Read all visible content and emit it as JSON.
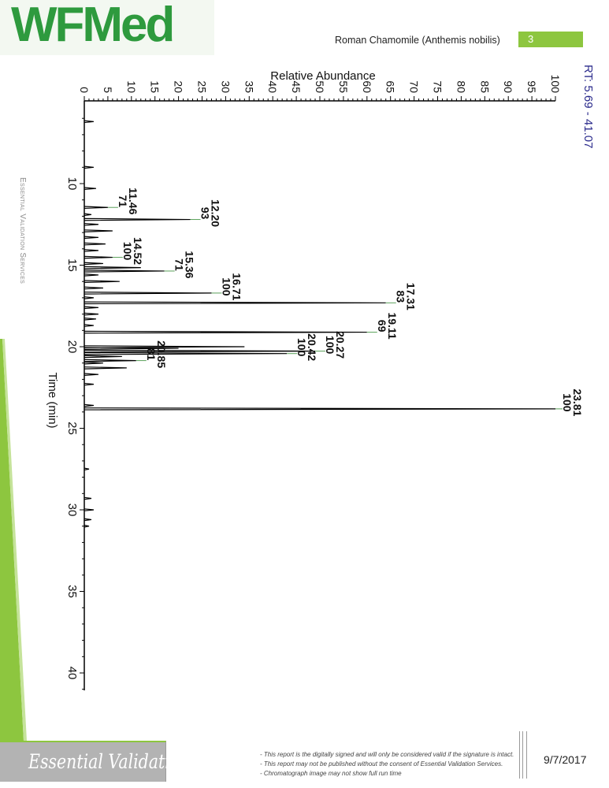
{
  "header": {
    "logo_text": "WFMed",
    "document_title": "Roman Chamomile (Anthemis nobilis)",
    "page_number": "3"
  },
  "sidebar": {
    "vertical_label": "Essential Validation Services"
  },
  "footer": {
    "brand": "Essential Validation Services",
    "disclaimers": [
      "- This report is the digitally signed and will only be considered valid if the signature is intact.",
      "- This report may not be published without the consent of Essential Validation Services.",
      "- Chromatograph image may not show full run time"
    ],
    "date": "9/7/2017"
  },
  "colors": {
    "brand_green": "#2e9a3e",
    "accent_green": "#8dc63f",
    "footer_gray": "#b3b3b3",
    "rt_blue": "#2b2b8c",
    "leader_green": "#5aa05a"
  },
  "chart_data": {
    "type": "line",
    "orientation": "rotated 90 degrees (time axis vertical, abundance axis horizontal)",
    "ylabel": "Relative Abundance",
    "xlabel": "Time (min)",
    "range_label": "RT: 5.69 - 41.07",
    "abundance_range": [
      0,
      100
    ],
    "time_range": [
      5.69,
      41.07
    ],
    "abundance_ticks": [
      "0",
      "5",
      "10",
      "15",
      "20",
      "25",
      "30",
      "35",
      "40",
      "45",
      "50",
      "55",
      "60",
      "65",
      "70",
      "75",
      "80",
      "85",
      "90",
      "95",
      "100"
    ],
    "time_ticks": [
      "10",
      "15",
      "20",
      "25",
      "30",
      "35",
      "40"
    ],
    "grid": false,
    "labeled_peaks": [
      {
        "rt": "11.46",
        "mz": "71",
        "time": 11.46,
        "abundance": 5
      },
      {
        "rt": "12.20",
        "mz": "93",
        "time": 12.2,
        "abundance": 22.5
      },
      {
        "rt": "14.52",
        "mz": "100",
        "time": 14.52,
        "abundance": 6
      },
      {
        "rt": "15.36",
        "mz": "71",
        "time": 15.36,
        "abundance": 17
      },
      {
        "rt": "16.71",
        "mz": "100",
        "time": 16.71,
        "abundance": 27
      },
      {
        "rt": "17.31",
        "mz": "83",
        "time": 17.31,
        "abundance": 64
      },
      {
        "rt": "19.11",
        "mz": "69",
        "time": 19.11,
        "abundance": 60
      },
      {
        "rt": "20.27",
        "mz": "100",
        "time": 20.27,
        "abundance": 49
      },
      {
        "rt": "20.42",
        "mz": "100",
        "time": 20.42,
        "abundance": 43
      },
      {
        "rt": "20.85",
        "mz": "81",
        "time": 20.85,
        "abundance": 11
      },
      {
        "rt": "23.81",
        "mz": "100",
        "time": 23.81,
        "abundance": 100
      }
    ],
    "other_peaks": [
      {
        "time": 6.2,
        "abundance": 2
      },
      {
        "time": 9.0,
        "abundance": 2
      },
      {
        "time": 10.3,
        "abundance": 2.5
      },
      {
        "time": 11.9,
        "abundance": 1.5
      },
      {
        "time": 12.5,
        "abundance": 3
      },
      {
        "time": 12.9,
        "abundance": 6
      },
      {
        "time": 13.3,
        "abundance": 3
      },
      {
        "time": 13.7,
        "abundance": 4.5
      },
      {
        "time": 14.1,
        "abundance": 3
      },
      {
        "time": 14.9,
        "abundance": 4
      },
      {
        "time": 15.15,
        "abundance": 12
      },
      {
        "time": 15.6,
        "abundance": 3
      },
      {
        "time": 16.0,
        "abundance": 7.5
      },
      {
        "time": 16.4,
        "abundance": 4
      },
      {
        "time": 17.0,
        "abundance": 2
      },
      {
        "time": 17.6,
        "abundance": 3
      },
      {
        "time": 18.0,
        "abundance": 3
      },
      {
        "time": 18.3,
        "abundance": 2.5
      },
      {
        "time": 18.7,
        "abundance": 2
      },
      {
        "time": 20.0,
        "abundance": 34
      },
      {
        "time": 20.1,
        "abundance": 20
      },
      {
        "time": 20.6,
        "abundance": 8
      },
      {
        "time": 21.0,
        "abundance": 4
      },
      {
        "time": 21.3,
        "abundance": 9
      },
      {
        "time": 21.7,
        "abundance": 3
      },
      {
        "time": 22.3,
        "abundance": 2
      },
      {
        "time": 23.6,
        "abundance": 2
      },
      {
        "time": 27.5,
        "abundance": 1
      },
      {
        "time": 29.3,
        "abundance": 1.5
      },
      {
        "time": 30.0,
        "abundance": 2
      },
      {
        "time": 30.6,
        "abundance": 1.5
      },
      {
        "time": 31.0,
        "abundance": 1
      }
    ]
  }
}
